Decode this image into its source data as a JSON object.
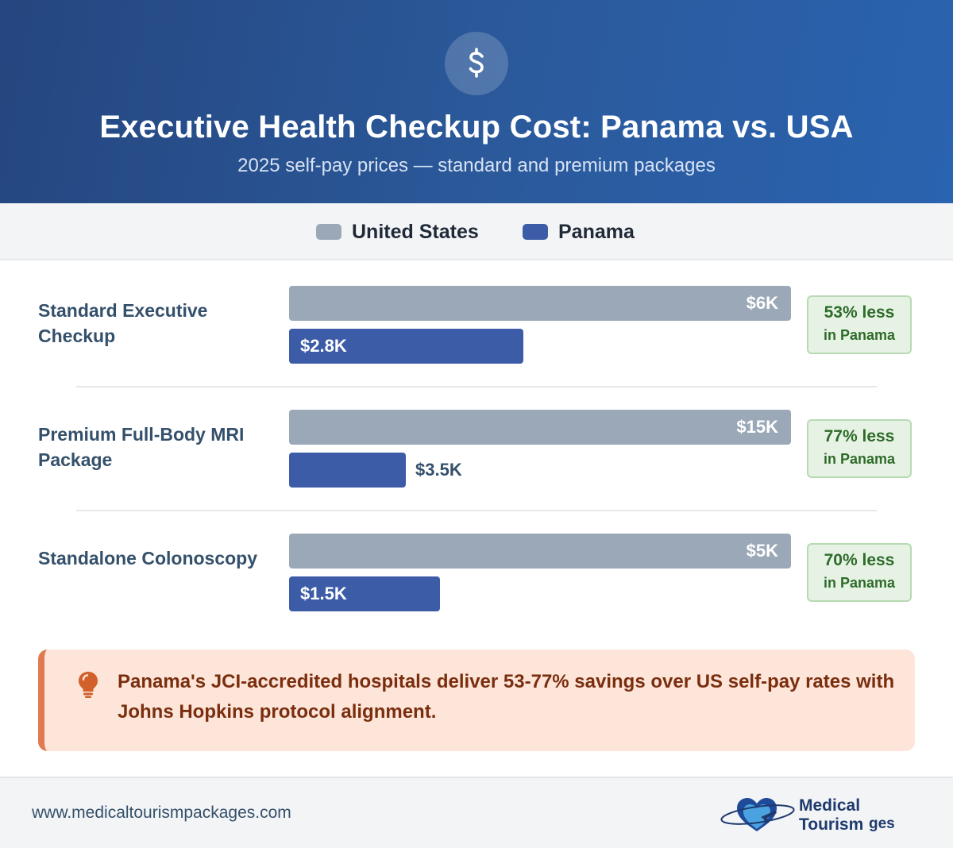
{
  "header": {
    "icon": "dollar-sign-icon",
    "title": "Executive Health Checkup Cost: Panama vs. USA",
    "subtitle": "2025 self-pay prices — standard and premium packages"
  },
  "legend": [
    {
      "label": "United States",
      "color": "#9aa8b8"
    },
    {
      "label": "Panama",
      "color": "#3c5ca8"
    }
  ],
  "chart_data": {
    "type": "bar",
    "orientation": "horizontal",
    "title": "Executive Health Checkup Cost: Panama vs. USA",
    "subtitle": "2025 self-pay prices — standard and premium packages",
    "categories": [
      "Standard Executive Checkup",
      "Premium Full-Body MRI Package",
      "Standalone Colonoscopy"
    ],
    "series": [
      {
        "name": "United States",
        "color": "#9aa8b8",
        "values": [
          6000,
          15000,
          5000
        ],
        "labels": [
          "$6K",
          "$15K",
          "$5K"
        ]
      },
      {
        "name": "Panama",
        "color": "#3c5ca8",
        "values": [
          2800,
          3500,
          1500
        ],
        "labels": [
          "$2.8K",
          "$3.5K",
          "$1.5K"
        ]
      }
    ],
    "savings": [
      {
        "pct": "53% less",
        "note": "in Panama"
      },
      {
        "pct": "77% less",
        "note": "in Panama"
      },
      {
        "pct": "70% less",
        "note": "in Panama"
      }
    ],
    "scale": "each category's bars scaled to its US value",
    "grid": false,
    "legend_position": "top"
  },
  "callout": {
    "icon": "lightbulb-icon",
    "text": "Panama's JCI-accredited hospitals deliver 53-77% savings over US self-pay rates with Johns Hopkins protocol alignment."
  },
  "footer": {
    "url": "www.medicaltourismpackages.com",
    "logo_line1": "Medical Tourism",
    "logo_line2": "ges"
  }
}
